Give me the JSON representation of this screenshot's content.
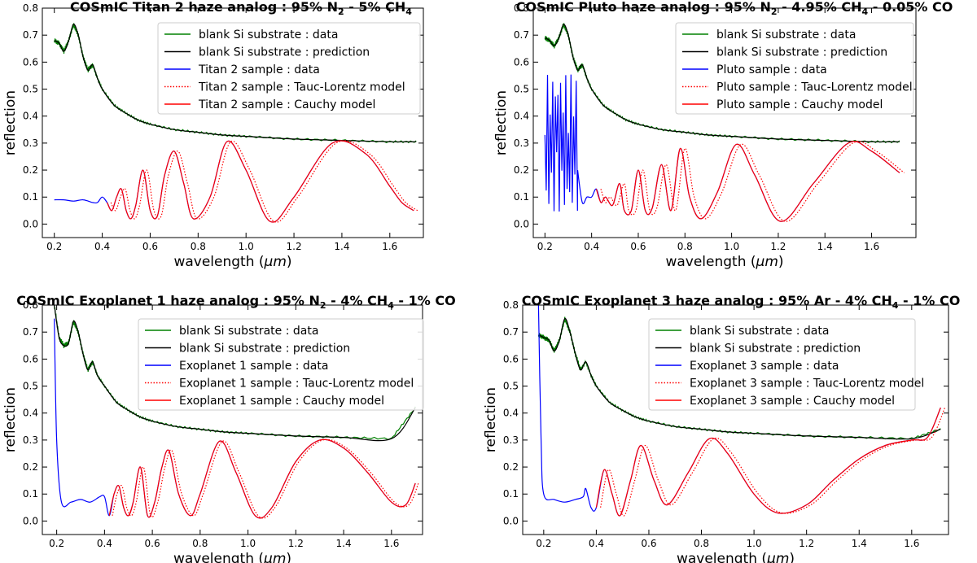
{
  "chart_data": [
    {
      "type": "line",
      "title": "COSmIC Titan 2 haze analog : 95% N",
      "title_parts": [
        "COSmIC Titan 2 haze analog : 95% N",
        "2",
        " - 5% CH",
        "4"
      ],
      "xlabel": "wavelength (",
      "xlabel_unit": "μm",
      "xlabel_close": ")",
      "ylabel": "reflection",
      "xlim": [
        0.15,
        1.74
      ],
      "ylim": [
        -0.05,
        0.8
      ],
      "xticks": [
        "0.2",
        "0.4",
        "0.6",
        "0.8",
        "1.0",
        "1.2",
        "1.4",
        "1.6"
      ],
      "yticks": [
        "0.0",
        "0.1",
        "0.2",
        "0.3",
        "0.4",
        "0.5",
        "0.6",
        "0.7",
        "0.8"
      ],
      "legend": [
        {
          "label": "blank Si substrate : data",
          "color": "#008000",
          "style": "solid"
        },
        {
          "label": "blank Si substrate : prediction",
          "color": "#000000",
          "style": "solid"
        },
        {
          "label": "Titan 2 sample : data",
          "color": "#0000ff",
          "style": "solid"
        },
        {
          "label": "Titan 2 sample : Tauc-Lorentz model",
          "color": "#ff0000",
          "style": "dotted"
        },
        {
          "label": "Titan 2 sample : Cauchy model",
          "color": "#ff0000",
          "style": "solid"
        }
      ],
      "substrate": {
        "x": [
          0.2,
          0.22,
          0.24,
          0.26,
          0.28,
          0.3,
          0.32,
          0.34,
          0.36,
          0.38,
          0.4,
          0.45,
          0.5,
          0.55,
          0.6,
          0.7,
          0.8,
          0.9,
          1.0,
          1.2,
          1.4,
          1.6,
          1.71
        ],
        "y": [
          0.68,
          0.67,
          0.64,
          0.68,
          0.74,
          0.7,
          0.62,
          0.57,
          0.59,
          0.54,
          0.5,
          0.44,
          0.41,
          0.385,
          0.37,
          0.35,
          0.34,
          0.33,
          0.325,
          0.315,
          0.31,
          0.305,
          0.305
        ]
      },
      "sample": {
        "x": [
          0.2,
          0.24,
          0.28,
          0.32,
          0.36,
          0.38,
          0.4,
          0.42,
          0.44,
          0.46,
          0.48,
          0.5,
          0.52,
          0.54,
          0.57,
          0.6,
          0.63,
          0.66,
          0.7,
          0.74,
          0.78,
          0.85,
          0.92,
          1.0,
          1.1,
          1.2,
          1.36,
          1.5,
          1.6,
          1.65,
          1.7
        ],
        "y": [
          0.09,
          0.09,
          0.085,
          0.09,
          0.08,
          0.08,
          0.1,
          0.08,
          0.05,
          0.1,
          0.13,
          0.05,
          0.02,
          0.07,
          0.2,
          0.05,
          0.03,
          0.18,
          0.27,
          0.15,
          0.02,
          0.1,
          0.305,
          0.2,
          0.01,
          0.1,
          0.3,
          0.26,
          0.14,
          0.08,
          0.05
        ]
      },
      "cauchy_from": 0.42,
      "tl_shift": 0.01
    },
    {
      "type": "line",
      "title": "COSmIC Pluto haze analog : 95% N",
      "title_parts": [
        "COSmIC Pluto haze analog : 95% N",
        "2",
        " - 4.95% CH",
        "4",
        " - 0.05% CO"
      ],
      "xlabel": "wavelength (",
      "xlabel_unit": "μm",
      "xlabel_close": ")",
      "ylabel": "reflection",
      "xlim": [
        0.15,
        1.79
      ],
      "ylim": [
        -0.05,
        0.8
      ],
      "xticks": [
        "0.2",
        "0.4",
        "0.6",
        "0.8",
        "1.0",
        "1.2",
        "1.4",
        "1.6"
      ],
      "yticks": [
        "0.0",
        "0.1",
        "0.2",
        "0.3",
        "0.4",
        "0.5",
        "0.6",
        "0.7",
        "0.8"
      ],
      "legend": [
        {
          "label": "blank Si substrate : data",
          "color": "#008000",
          "style": "solid"
        },
        {
          "label": "blank Si substrate : prediction",
          "color": "#000000",
          "style": "solid"
        },
        {
          "label": "Pluto sample : data",
          "color": "#0000ff",
          "style": "solid"
        },
        {
          "label": "Pluto sample : Tauc-Lorentz model",
          "color": "#ff0000",
          "style": "dotted"
        },
        {
          "label": "Pluto sample : Cauchy model",
          "color": "#ff0000",
          "style": "solid"
        }
      ],
      "substrate": {
        "x": [
          0.2,
          0.22,
          0.24,
          0.26,
          0.28,
          0.3,
          0.32,
          0.34,
          0.36,
          0.38,
          0.4,
          0.45,
          0.5,
          0.55,
          0.6,
          0.7,
          0.8,
          0.9,
          1.0,
          1.2,
          1.4,
          1.6,
          1.72
        ],
        "y": [
          0.69,
          0.68,
          0.66,
          0.69,
          0.74,
          0.7,
          0.62,
          0.57,
          0.59,
          0.54,
          0.5,
          0.44,
          0.41,
          0.385,
          0.37,
          0.35,
          0.34,
          0.33,
          0.325,
          0.315,
          0.31,
          0.305,
          0.305
        ]
      },
      "sample": {
        "x": [
          0.2,
          0.22,
          0.24,
          0.26,
          0.28,
          0.3,
          0.32,
          0.34,
          0.36,
          0.38,
          0.4,
          0.42,
          0.44,
          0.46,
          0.49,
          0.52,
          0.54,
          0.57,
          0.6,
          0.63,
          0.66,
          0.7,
          0.74,
          0.78,
          0.82,
          0.87,
          0.94,
          1.02,
          1.1,
          1.21,
          1.35,
          1.5,
          1.6,
          1.72
        ],
        "y": [
          0.3,
          0.5,
          0.2,
          0.6,
          0.1,
          0.4,
          0.05,
          0.2,
          0.08,
          0.1,
          0.1,
          0.13,
          0.08,
          0.1,
          0.07,
          0.15,
          0.05,
          0.05,
          0.2,
          0.05,
          0.06,
          0.22,
          0.05,
          0.28,
          0.1,
          0.02,
          0.12,
          0.295,
          0.18,
          0.01,
          0.15,
          0.3,
          0.27,
          0.19
        ]
      },
      "noise_to": 0.34,
      "cauchy_from": 0.42,
      "tl_shift": 0.012
    },
    {
      "type": "line",
      "title": "COSmIC Exoplanet 1 haze analog : 95% N",
      "title_parts": [
        "COSmIC Exoplanet 1 haze analog : 95% N",
        "2",
        " - 4% CH",
        "4",
        " - 1% CO"
      ],
      "xlabel": "wavelength (",
      "xlabel_unit": "μm",
      "xlabel_close": ")",
      "ylabel": "reflection",
      "xlim": [
        0.14,
        1.73
      ],
      "ylim": [
        -0.05,
        0.8
      ],
      "xticks": [
        "0.2",
        "0.4",
        "0.6",
        "0.8",
        "1.0",
        "1.2",
        "1.4",
        "1.6"
      ],
      "yticks": [
        "0.0",
        "0.1",
        "0.2",
        "0.3",
        "0.4",
        "0.5",
        "0.6",
        "0.7",
        "0.8"
      ],
      "legend": [
        {
          "label": "blank Si substrate : data",
          "color": "#008000",
          "style": "solid"
        },
        {
          "label": "blank Si substrate : prediction",
          "color": "#000000",
          "style": "solid"
        },
        {
          "label": "Exoplanet 1 sample : data",
          "color": "#0000ff",
          "style": "solid"
        },
        {
          "label": "Exoplanet 1 sample : Tauc-Lorentz model",
          "color": "#ff0000",
          "style": "dotted"
        },
        {
          "label": "Exoplanet 1 sample : Cauchy model",
          "color": "#ff0000",
          "style": "solid"
        }
      ],
      "substrate": {
        "x": [
          0.19,
          0.21,
          0.23,
          0.25,
          0.27,
          0.29,
          0.31,
          0.33,
          0.35,
          0.37,
          0.4,
          0.45,
          0.5,
          0.55,
          0.6,
          0.7,
          0.8,
          0.9,
          1.0,
          1.2,
          1.4,
          1.6,
          1.7
        ],
        "y": [
          0.8,
          0.68,
          0.65,
          0.66,
          0.74,
          0.7,
          0.62,
          0.56,
          0.59,
          0.54,
          0.5,
          0.44,
          0.41,
          0.385,
          0.37,
          0.35,
          0.34,
          0.33,
          0.325,
          0.315,
          0.31,
          0.305,
          0.42
        ]
      },
      "sample": {
        "x": [
          0.19,
          0.2,
          0.22,
          0.26,
          0.3,
          0.34,
          0.38,
          0.4,
          0.42,
          0.44,
          0.46,
          0.48,
          0.5,
          0.52,
          0.55,
          0.58,
          0.61,
          0.64,
          0.67,
          0.71,
          0.76,
          0.8,
          0.88,
          0.95,
          1.03,
          1.1,
          1.2,
          1.3,
          1.4,
          1.5,
          1.6,
          1.66,
          1.7
        ],
        "y": [
          0.75,
          0.3,
          0.07,
          0.07,
          0.08,
          0.07,
          0.09,
          0.09,
          0.02,
          0.1,
          0.13,
          0.05,
          0.02,
          0.07,
          0.2,
          0.02,
          0.07,
          0.2,
          0.26,
          0.1,
          0.02,
          0.1,
          0.295,
          0.18,
          0.02,
          0.05,
          0.22,
          0.3,
          0.27,
          0.18,
          0.07,
          0.06,
          0.14
        ]
      },
      "cauchy_from": 0.42,
      "tl_shift": 0.008
    },
    {
      "type": "line",
      "title": "COSmIC Exoplanet 3 haze analog : 95% Ar - 4% CH",
      "title_parts": [
        "COSmIC Exoplanet 3 haze analog : 95% Ar - 4% CH",
        "4",
        " - 1% CO"
      ],
      "xlabel": "wavelength (",
      "xlabel_unit": "μm",
      "xlabel_close": ")",
      "ylabel": "reflection",
      "xlim": [
        0.12,
        1.74
      ],
      "ylim": [
        -0.05,
        0.8
      ],
      "xticks": [
        "0.2",
        "0.4",
        "0.6",
        "0.8",
        "1.0",
        "1.2",
        "1.4",
        "1.6"
      ],
      "yticks": [
        "0.0",
        "0.1",
        "0.2",
        "0.3",
        "0.4",
        "0.5",
        "0.6",
        "0.7",
        "0.8"
      ],
      "legend": [
        {
          "label": "blank Si substrate : data",
          "color": "#008000",
          "style": "solid"
        },
        {
          "label": "blank Si substrate : prediction",
          "color": "#000000",
          "style": "solid"
        },
        {
          "label": "Exoplanet 3 sample : data",
          "color": "#0000ff",
          "style": "solid"
        },
        {
          "label": "Exoplanet 3 sample : Tauc-Lorentz model",
          "color": "#ff0000",
          "style": "dotted"
        },
        {
          "label": "Exoplanet 3 sample : Cauchy model",
          "color": "#ff0000",
          "style": "solid"
        }
      ],
      "substrate": {
        "x": [
          0.18,
          0.2,
          0.22,
          0.24,
          0.26,
          0.28,
          0.3,
          0.32,
          0.34,
          0.36,
          0.38,
          0.4,
          0.45,
          0.5,
          0.55,
          0.6,
          0.7,
          0.8,
          0.9,
          1.0,
          1.2,
          1.4,
          1.6,
          1.71
        ],
        "y": [
          0.69,
          0.68,
          0.67,
          0.63,
          0.67,
          0.75,
          0.7,
          0.62,
          0.56,
          0.59,
          0.54,
          0.5,
          0.44,
          0.41,
          0.385,
          0.37,
          0.35,
          0.34,
          0.33,
          0.325,
          0.315,
          0.31,
          0.305,
          0.34
        ]
      },
      "sample": {
        "x": [
          0.18,
          0.19,
          0.2,
          0.24,
          0.28,
          0.32,
          0.35,
          0.36,
          0.38,
          0.4,
          0.43,
          0.46,
          0.49,
          0.53,
          0.57,
          0.62,
          0.67,
          0.75,
          0.83,
          0.9,
          1.0,
          1.09,
          1.2,
          1.3,
          1.4,
          1.5,
          1.6,
          1.66,
          1.71
        ],
        "y": [
          0.8,
          0.3,
          0.1,
          0.08,
          0.07,
          0.08,
          0.09,
          0.12,
          0.05,
          0.05,
          0.19,
          0.1,
          0.02,
          0.15,
          0.28,
          0.15,
          0.06,
          0.18,
          0.305,
          0.25,
          0.1,
          0.03,
          0.06,
          0.15,
          0.23,
          0.28,
          0.3,
          0.31,
          0.42
        ]
      },
      "cauchy_from": 0.4,
      "tl_shift": 0.01
    }
  ]
}
